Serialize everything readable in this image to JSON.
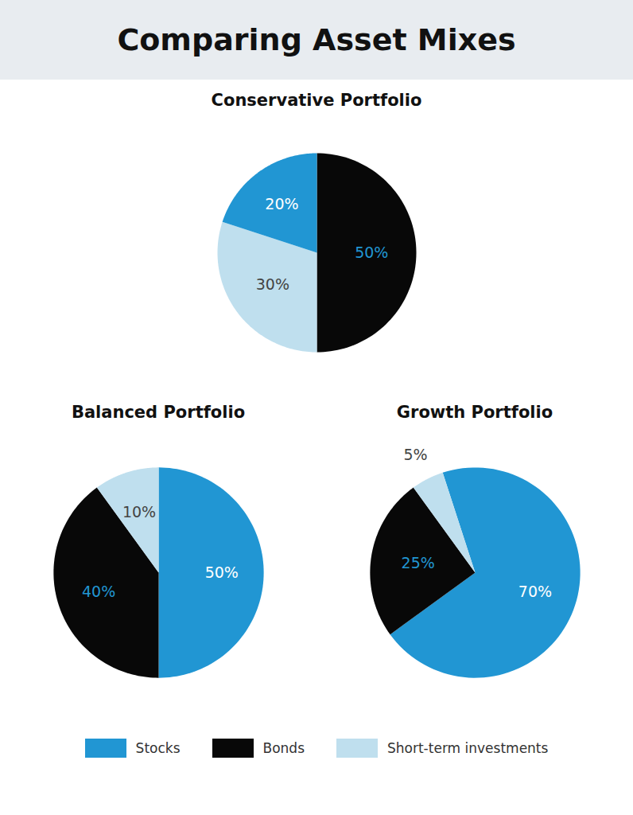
{
  "title": "Comparing Asset Mixes",
  "legend": "bottom",
  "chart_data": [
    {
      "type": "pie",
      "title": "Conservative Portfolio",
      "categories": [
        "Bonds",
        "Short-term investments",
        "Stocks"
      ],
      "values": [
        50,
        30,
        20
      ],
      "value_labels": [
        "50%",
        "30%",
        "20%"
      ],
      "colors": [
        "#080808",
        "#bfdfee",
        "#2196d3"
      ],
      "data_labels": true
    },
    {
      "type": "pie",
      "title": "Balanced Portfolio",
      "categories": [
        "Stocks",
        "Bonds",
        "Short-term investments"
      ],
      "values": [
        50,
        40,
        10
      ],
      "value_labels": [
        "50%",
        "40%",
        "10%"
      ],
      "colors": [
        "#2196d3",
        "#080808",
        "#bfdfee"
      ],
      "data_labels": true
    },
    {
      "type": "pie",
      "title": "Growth Portfolio",
      "categories": [
        "Stocks",
        "Bonds",
        "Short-term investments"
      ],
      "values": [
        70,
        25,
        5
      ],
      "value_labels": [
        "70%",
        "25%",
        "5%"
      ],
      "colors": [
        "#2196d3",
        "#080808",
        "#bfdfee"
      ],
      "data_labels": true
    }
  ]
}
